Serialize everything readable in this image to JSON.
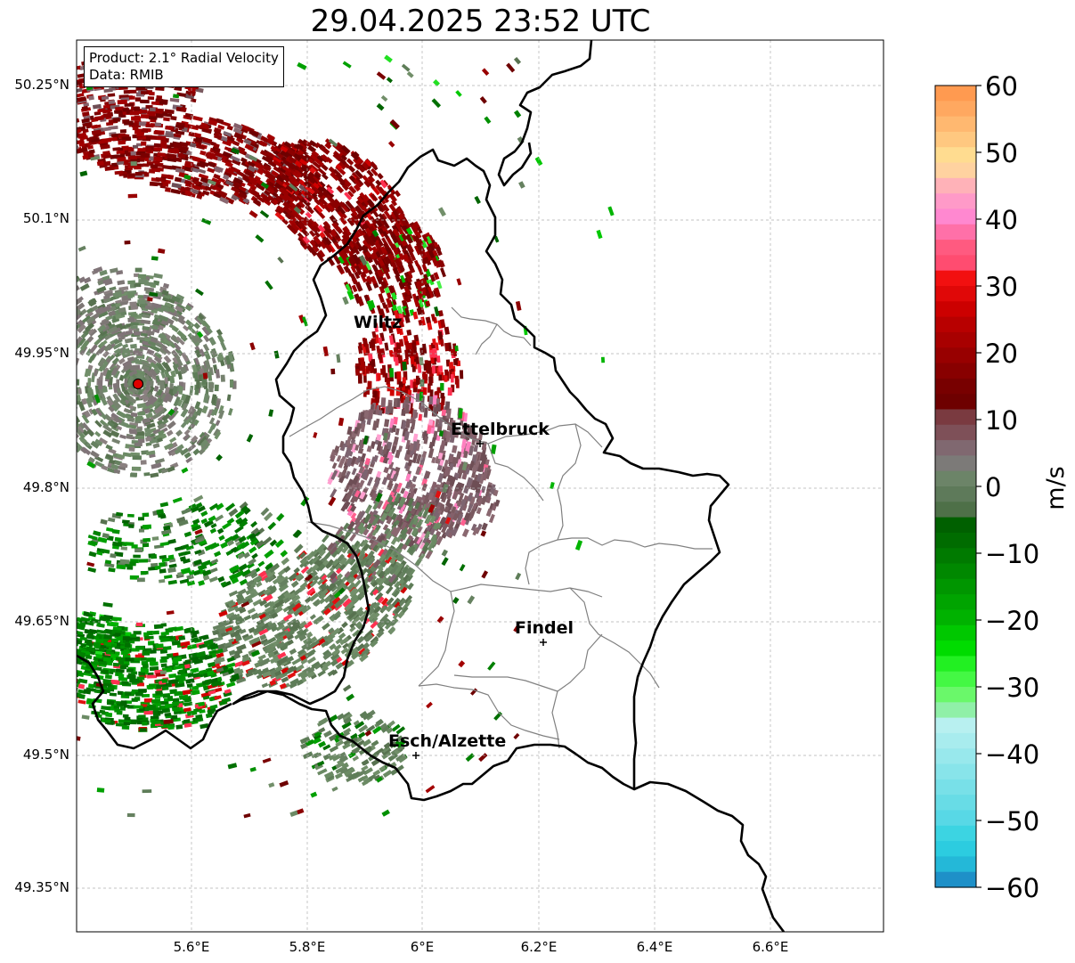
{
  "title": "29.04.2025 23:52 UTC",
  "info": {
    "product": "Product: 2.1° Radial Velocity",
    "data": "Data: RMIB"
  },
  "map": {
    "lat_ticks": [
      "50.25°N",
      "50.1°N",
      "49.95°N",
      "49.8°N",
      "49.65°N",
      "49.5°N",
      "49.35°N"
    ],
    "lon_ticks": [
      "5.6°E",
      "5.8°E",
      "6°E",
      "6.2°E",
      "6.4°E",
      "6.6°E"
    ],
    "cities": [
      {
        "name": "Wiltz",
        "marker": false
      },
      {
        "name": "Ettelbruck",
        "marker": true
      },
      {
        "name": "Findel",
        "marker": true
      },
      {
        "name": "Esch/Alzette",
        "marker": true
      }
    ],
    "radar_site_color": "#e00000"
  },
  "colorbar": {
    "unit": "m/s",
    "range": [
      -60,
      60
    ],
    "tick_labels": [
      "60",
      "50",
      "40",
      "30",
      "20",
      "10",
      "0",
      "−10",
      "−20",
      "−30",
      "−40",
      "−50",
      "−60"
    ],
    "colors_top_to_bottom": [
      "#ff9a50",
      "#ffa860",
      "#ffb870",
      "#ffc880",
      "#ffdc90",
      "#ffd2a0",
      "#ffb2b8",
      "#ff9ac8",
      "#ff88d0",
      "#ff70a8",
      "#ff5a80",
      "#ff4c70",
      "#f21010",
      "#e00808",
      "#cc0000",
      "#b80000",
      "#a80000",
      "#980000",
      "#880000",
      "#780000",
      "#6e0000",
      "#7a3a40",
      "#7e5058",
      "#806870",
      "#7c7a78",
      "#6c8468",
      "#5e7a5a",
      "#4e7048",
      "#006000",
      "#006c00",
      "#007a00",
      "#008800",
      "#009600",
      "#00a400",
      "#00b200",
      "#00c800",
      "#00dc00",
      "#22f022",
      "#44f844",
      "#6af86a",
      "#90f0a8",
      "#b8f0f0",
      "#a8ecee",
      "#98e8ec",
      "#88e4ea",
      "#78e0e8",
      "#68dce6",
      "#58d8e6",
      "#3cd4e2",
      "#2ccce0",
      "#24b8d8",
      "#1e90c8"
    ]
  }
}
